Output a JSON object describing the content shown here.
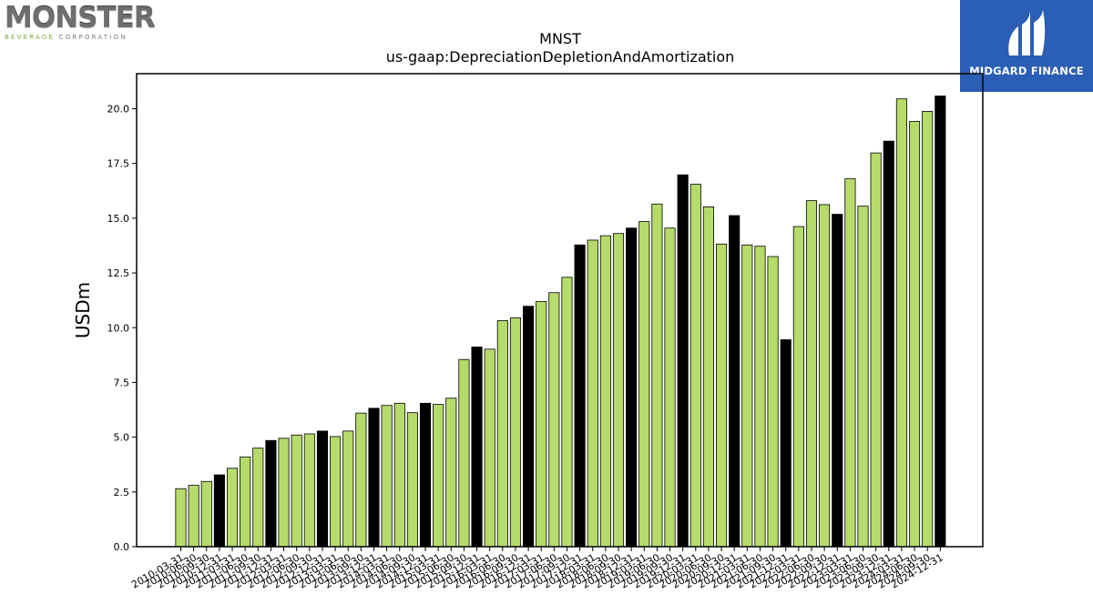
{
  "logos": {
    "left": {
      "word": "MONSTER",
      "sub_green": "BEVERAGE",
      "sub_gray": "CORPORATION"
    },
    "right": {
      "brand": "MIDGARD FINANCE"
    }
  },
  "chart_data": {
    "type": "bar",
    "title": "MNST",
    "subtitle": "us-gaap:DepreciationDepletionAndAmortization",
    "xlabel": "",
    "ylabel": "USDm",
    "ylim": [
      0,
      21.6
    ],
    "yticks": [
      0.0,
      2.5,
      5.0,
      7.5,
      10.0,
      12.5,
      15.0,
      17.5,
      20.0
    ],
    "ytick_labels": [
      "0.0",
      "2.5",
      "5.0",
      "7.5",
      "10.0",
      "12.5",
      "15.0",
      "17.5",
      "20.0"
    ],
    "colors": {
      "quarter": "#b5db6a",
      "year_end": "#000000",
      "edge": "#000000"
    },
    "categories": [
      "2010-03-31",
      "2010-06-30",
      "2010-09-30",
      "2010-12-31",
      "2011-03-31",
      "2011-06-30",
      "2011-09-30",
      "2011-12-31",
      "2012-03-31",
      "2012-06-30",
      "2012-09-30",
      "2012-12-31",
      "2013-03-31",
      "2013-06-30",
      "2013-09-30",
      "2013-12-31",
      "2014-03-31",
      "2014-06-30",
      "2014-09-30",
      "2014-12-31",
      "2015-03-31",
      "2015-06-30",
      "2015-09-30",
      "2015-12-31",
      "2016-03-31",
      "2016-06-30",
      "2016-09-30",
      "2016-12-31",
      "2017-03-31",
      "2017-06-30",
      "2017-09-30",
      "2017-12-31",
      "2018-03-31",
      "2018-06-30",
      "2018-09-30",
      "2018-12-31",
      "2019-03-31",
      "2019-06-30",
      "2019-09-30",
      "2019-12-31",
      "2020-03-31",
      "2020-06-30",
      "2020-09-30",
      "2020-12-31",
      "2021-03-31",
      "2021-06-30",
      "2021-09-30",
      "2021-12-31",
      "2022-03-31",
      "2022-06-30",
      "2022-09-30",
      "2022-12-31",
      "2023-03-31",
      "2023-06-30",
      "2023-09-30",
      "2023-12-31",
      "2024-03-31",
      "2024-06-30",
      "2024-09-30",
      "2024-12-31"
    ],
    "values": [
      2.65,
      2.8,
      2.98,
      3.28,
      3.58,
      4.1,
      4.5,
      4.85,
      4.95,
      5.1,
      5.15,
      5.28,
      5.03,
      5.28,
      6.1,
      6.32,
      6.45,
      6.55,
      6.12,
      6.55,
      6.5,
      6.78,
      8.55,
      9.12,
      9.02,
      10.32,
      10.45,
      10.98,
      11.2,
      11.6,
      12.3,
      13.78,
      14.0,
      14.2,
      14.3,
      14.55,
      14.85,
      15.65,
      14.55,
      16.98,
      16.55,
      15.52,
      13.82,
      15.12,
      13.78,
      13.72,
      13.25,
      9.45,
      14.62,
      15.8,
      15.62,
      15.18,
      16.8,
      15.55,
      17.98,
      18.52,
      20.45,
      19.42,
      19.88,
      20.58
    ]
  }
}
